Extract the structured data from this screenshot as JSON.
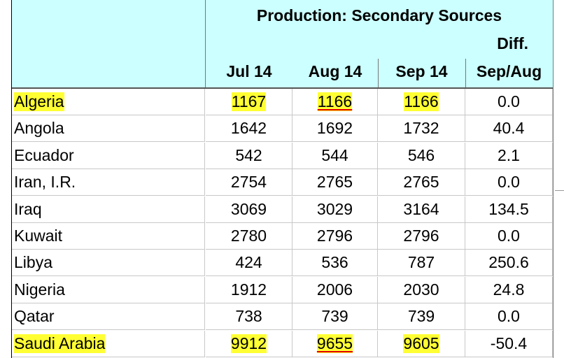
{
  "header": {
    "title": "Production:  Secondary Sources",
    "diff": "Diff.",
    "columns": [
      "Jul 14",
      "Aug 14",
      "Sep 14",
      "Sep/Aug"
    ]
  },
  "table": {
    "rows": [
      [
        "Algeria",
        "1167",
        "1166",
        "1166",
        "0.0"
      ],
      [
        "Angola",
        "1642",
        "1692",
        "1732",
        "40.4"
      ],
      [
        "Ecuador",
        "542",
        "544",
        "546",
        "2.1"
      ],
      [
        "Iran, I.R.",
        "2754",
        "2765",
        "2765",
        "0.0"
      ],
      [
        "Iraq",
        "3069",
        "3029",
        "3164",
        "134.5"
      ],
      [
        "Kuwait",
        "2780",
        "2796",
        "2796",
        "0.0"
      ],
      [
        "Libya",
        "424",
        "536",
        "787",
        "250.6"
      ],
      [
        "Nigeria",
        "1912",
        "2006",
        "2030",
        "24.8"
      ],
      [
        "Qatar",
        "738",
        "739",
        "739",
        "0.0"
      ],
      [
        "Saudi Arabia",
        "9912",
        "9655",
        "9605",
        "-50.4"
      ]
    ]
  }
}
